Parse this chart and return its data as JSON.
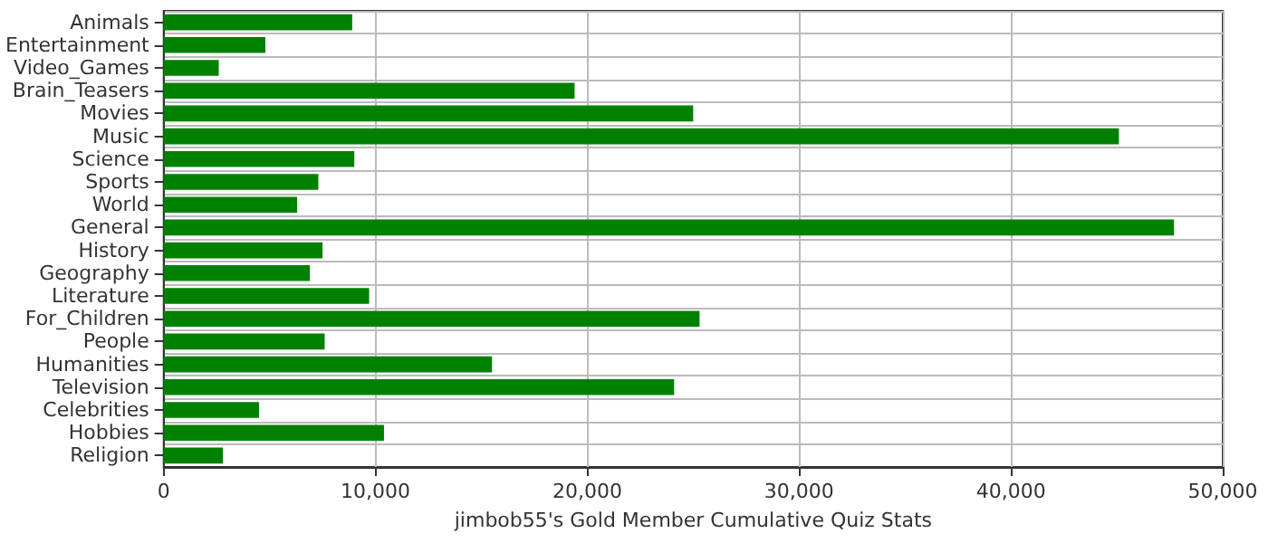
{
  "chart_data": {
    "type": "bar",
    "orientation": "horizontal",
    "xlabel": "jimbob55's Gold Member Cumulative Quiz Stats",
    "categories": [
      "Animals",
      "Entertainment",
      "Video_Games",
      "Brain_Teasers",
      "Movies",
      "Music",
      "Science",
      "Sports",
      "World",
      "General",
      "History",
      "Geography",
      "Literature",
      "For_Children",
      "People",
      "Humanities",
      "Television",
      "Celebrities",
      "Hobbies",
      "Religion"
    ],
    "values": [
      8900,
      4800,
      2600,
      19400,
      25000,
      45100,
      9000,
      7300,
      6300,
      47700,
      7500,
      6900,
      9700,
      25300,
      7600,
      15500,
      24100,
      4500,
      10400,
      2800
    ],
    "color": "#008000",
    "xlim": [
      0,
      50000
    ],
    "xticks": [
      0,
      {
        "value": 10000,
        "label": "10,000"
      },
      {
        "value": 20000,
        "label": "20,000"
      },
      {
        "value": 30000,
        "label": "30,000"
      },
      {
        "value": 40000,
        "label": "40,000"
      },
      {
        "value": 50000,
        "label": "50,000"
      }
    ],
    "grid": true
  }
}
